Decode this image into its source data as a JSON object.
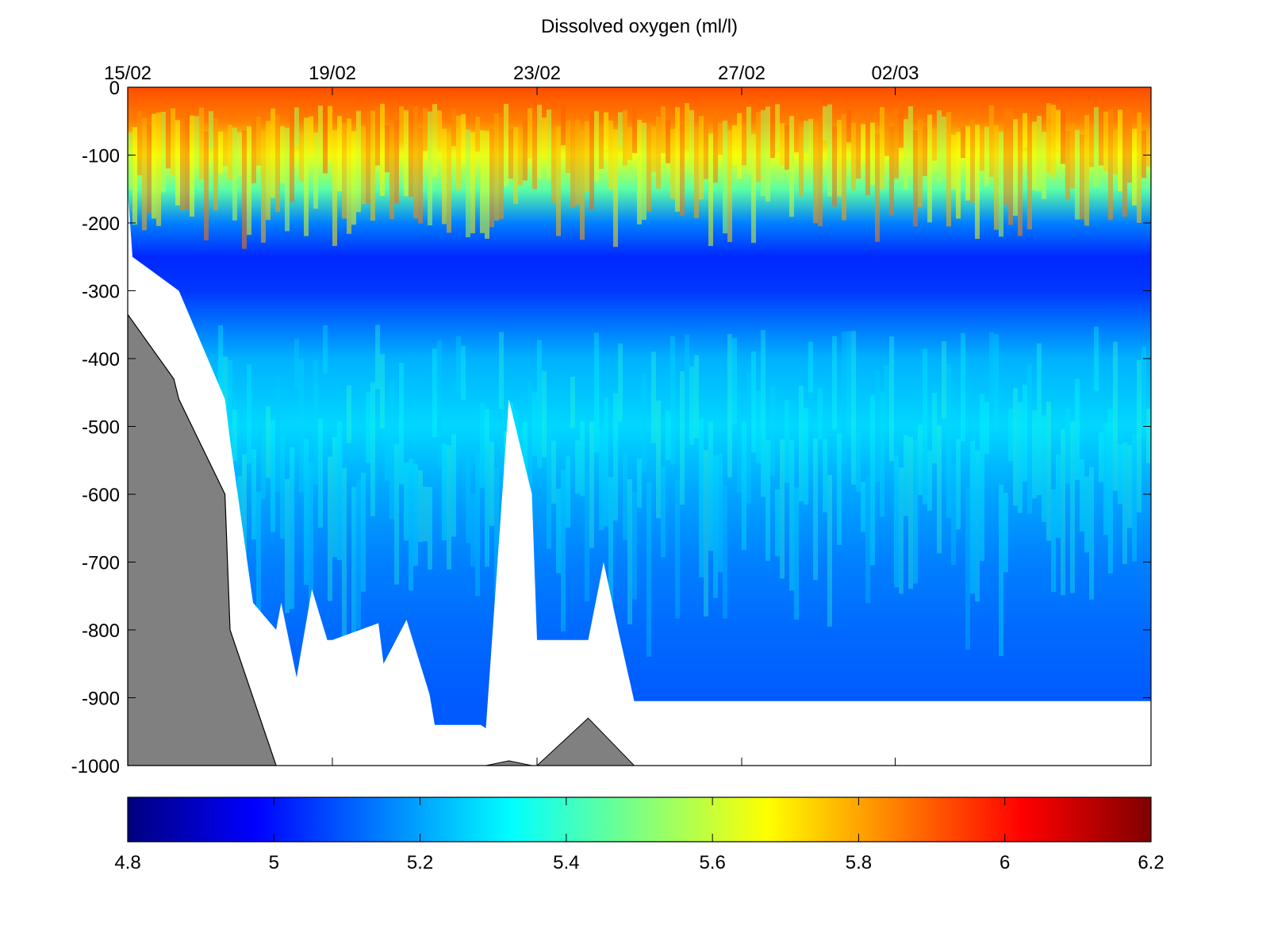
{
  "chart_data": [
    {
      "type": "heatmap",
      "title": "Dissolved oxygen (ml/l)",
      "xlabel": "",
      "ylabel": "",
      "x_axis": {
        "position": "top",
        "range": [
          "15/02",
          "07/03"
        ],
        "ticks": [
          {
            "value": "15/02",
            "label": "15/02"
          },
          {
            "value": "19/02",
            "label": "19/02"
          },
          {
            "value": "23/02",
            "label": "23/02"
          },
          {
            "value": "27/02",
            "label": "27/02"
          },
          {
            "value": "02/03",
            "label": "02/03"
          }
        ]
      },
      "y_axis": {
        "range": [
          -1000,
          0
        ],
        "ticks": [
          0,
          -100,
          -200,
          -300,
          -400,
          -500,
          -600,
          -700,
          -800,
          -900,
          -1000
        ]
      },
      "grid": false,
      "z_label": "Dissolved oxygen (ml/l)",
      "z_range": [
        4.8,
        6.2
      ],
      "colormap": "jet",
      "depth_profile": {
        "depth": [
          0,
          -50,
          -100,
          -150,
          -200,
          -250,
          -300,
          -400,
          -500,
          -600,
          -700,
          -800,
          -900
        ],
        "approx_value": [
          5.92,
          5.85,
          5.65,
          5.45,
          5.15,
          5.03,
          5.05,
          5.22,
          5.27,
          5.2,
          5.15,
          5.12,
          5.1
        ]
      },
      "data_bottom": [
        {
          "date": "15/02",
          "depth": -150
        },
        {
          "date": "15/02",
          "depth": -250
        },
        {
          "date": "16/02",
          "depth": -300
        },
        {
          "date": "16/02",
          "depth": -460
        },
        {
          "date": "17/02",
          "depth": -520
        },
        {
          "date": "17/02",
          "depth": -760
        },
        {
          "date": "17/02",
          "depth": -800
        },
        {
          "date": "18/02",
          "depth": -760
        },
        {
          "date": "18/02",
          "depth": -870
        },
        {
          "date": "18/02",
          "depth": -740
        },
        {
          "date": "18/02",
          "depth": -815
        },
        {
          "date": "19/02",
          "depth": -815
        },
        {
          "date": "19/02",
          "depth": -790
        },
        {
          "date": "20/02",
          "depth": -850
        },
        {
          "date": "20/02",
          "depth": -785
        },
        {
          "date": "20/02",
          "depth": -895
        },
        {
          "date": "21/02",
          "depth": -940
        },
        {
          "date": "21/02",
          "depth": -940
        },
        {
          "date": "22/02",
          "depth": -945
        },
        {
          "date": "22/02",
          "depth": -460
        },
        {
          "date": "22/02",
          "depth": -600
        },
        {
          "date": "23/02",
          "depth": -815
        },
        {
          "date": "23/02",
          "depth": -815
        },
        {
          "date": "24/02",
          "depth": -815
        },
        {
          "date": "24/02",
          "depth": -700
        },
        {
          "date": "24/02",
          "depth": -805
        },
        {
          "date": "24/02",
          "depth": -905
        },
        {
          "date": "07/03",
          "depth": -905
        }
      ],
      "seabed": [
        {
          "date": "15/02",
          "depth": -335
        },
        {
          "date": "15/02",
          "depth": -430
        },
        {
          "date": "16/02",
          "depth": -460
        },
        {
          "date": "16/02",
          "depth": -600
        },
        {
          "date": "17/02",
          "depth": -800
        },
        {
          "date": "17/02",
          "depth": -1000
        }
      ],
      "seamount_1": [
        {
          "date": "22/02",
          "depth": -1000
        },
        {
          "date": "22/02",
          "depth": -993
        },
        {
          "date": "22/02",
          "depth": -1000
        }
      ],
      "seamount_2": [
        {
          "date": "23/02",
          "depth": -1000
        },
        {
          "date": "24/02",
          "depth": -930
        },
        {
          "date": "24/02",
          "depth": -1000
        }
      ],
      "colorbar": {
        "ticks": [
          4.8,
          5,
          5.2,
          5.4,
          5.6,
          5.8,
          6,
          6.2
        ],
        "tick_labels": [
          "4.8",
          "5",
          "5.2",
          "5.4",
          "5.6",
          "5.8",
          "6",
          "6.2"
        ]
      }
    }
  ]
}
